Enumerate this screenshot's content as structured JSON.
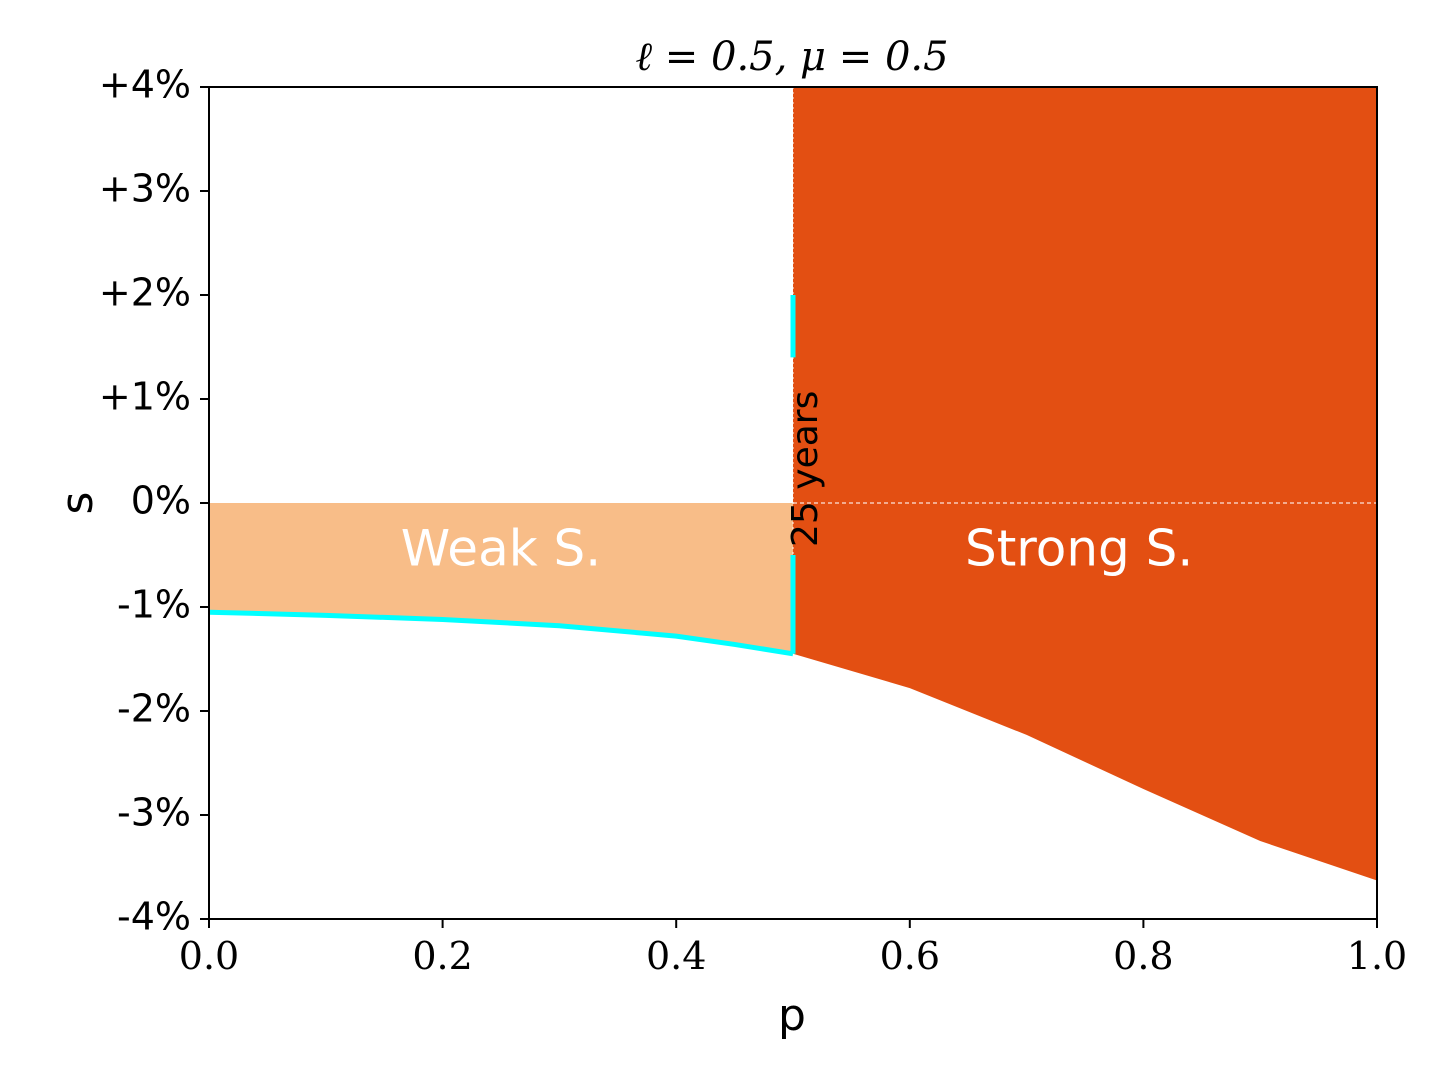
{
  "chart_data": {
    "type": "area",
    "title": "ℓ = 0.5, μ = 0.5",
    "xlabel": "p",
    "ylabel": "s",
    "xlim": [
      0.0,
      1.0
    ],
    "ylim": [
      -4,
      4
    ],
    "x_ticks": [
      0.0,
      0.2,
      0.4,
      0.6,
      0.8,
      1.0
    ],
    "x_tick_labels": [
      "0.0",
      "0.2",
      "0.4",
      "0.6",
      "0.8",
      "1.0"
    ],
    "y_ticks": [
      4,
      3,
      2,
      1,
      0,
      -1,
      -2,
      -3,
      -4
    ],
    "y_tick_labels": [
      "+4%",
      "+3%",
      "+2%",
      "+1%",
      "0%",
      "-1%",
      "-2%",
      "-3%",
      "-4%"
    ],
    "grid": false,
    "colors": {
      "weak": "#f8bd88",
      "strong": "#e34f12",
      "boundary": "#00ffff",
      "axes": "#000000",
      "annotation_light": "#ffffff"
    },
    "boundary_threshold_p": 0.5,
    "regions": [
      {
        "name": "Weak S.",
        "label": "Weak S.",
        "p_range": [
          0.0,
          0.5
        ],
        "upper_s": 0.0,
        "lower_curve": {
          "p": [
            0.0,
            0.1,
            0.2,
            0.3,
            0.4,
            0.45,
            0.5
          ],
          "s": [
            -1.05,
            -1.08,
            -1.12,
            -1.18,
            -1.28,
            -1.36,
            -1.45
          ]
        },
        "label_pos": {
          "p": 0.25,
          "s": -0.6
        }
      },
      {
        "name": "Strong S.",
        "label": "Strong S.",
        "p_range": [
          0.5,
          1.0
        ],
        "upper_s": 4.0,
        "lower_curve": {
          "p": [
            0.5,
            0.6,
            0.7,
            0.8,
            0.9,
            1.0
          ],
          "s": [
            -1.45,
            -1.78,
            -2.23,
            -2.75,
            -3.25,
            -3.63
          ]
        },
        "label_pos": {
          "p": 0.745,
          "s": -0.6
        }
      }
    ],
    "cyan_boundary": {
      "lower_curve": {
        "p": [
          0.0,
          0.1,
          0.2,
          0.3,
          0.4,
          0.45,
          0.5
        ],
        "s": [
          -1.05,
          -1.08,
          -1.12,
          -1.18,
          -1.28,
          -1.36,
          -1.45
        ]
      },
      "vertical_segments": [
        {
          "p": 0.5,
          "s_from": -1.45,
          "s_to": -0.5
        },
        {
          "p": 0.5,
          "s_from": 1.4,
          "s_to": 2.0
        }
      ]
    },
    "reference_lines": [
      {
        "orientation": "vertical",
        "p": 0.5,
        "style": "dotted"
      },
      {
        "orientation": "horizontal",
        "s": 0.0,
        "p_from": 0.5,
        "p_to": 1.0,
        "style": "dashed"
      }
    ],
    "annotations": [
      {
        "text": "25 years",
        "p": 0.5,
        "s": 0.3,
        "rotation": -90
      }
    ]
  }
}
